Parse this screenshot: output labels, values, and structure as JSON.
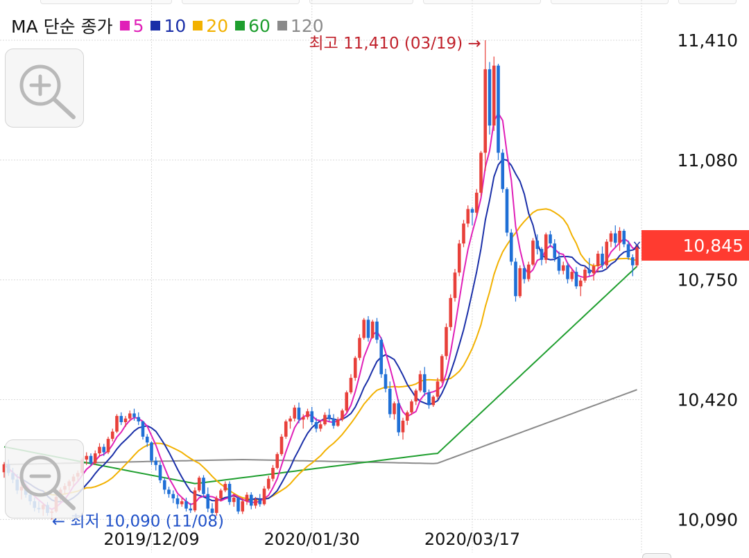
{
  "legend": {
    "title": "MA 단순 종가",
    "items": [
      {
        "label": "5",
        "color": "#e020b8"
      },
      {
        "label": "10",
        "color": "#1a2fa8"
      },
      {
        "label": "20",
        "color": "#f2b100"
      },
      {
        "label": "60",
        "color": "#1e9e2e"
      },
      {
        "label": "120",
        "color": "#8a8a8a"
      }
    ]
  },
  "annotations": {
    "high_label": "최고 11,410 (03/19)",
    "high_arrow": "→",
    "low_label": "최저 10,090 (11/08)",
    "low_arrow": "←"
  },
  "current_price_label": "10,845",
  "colors": {
    "up": "#e8403a",
    "down": "#1f6fd6",
    "price_tag": "#ff3b30"
  },
  "icons": {
    "zoom_in": "zoom-in-icon",
    "zoom_out": "zoom-out-icon"
  },
  "chart_data": {
    "type": "candlestick",
    "title": "",
    "y_ticks": [
      "11,410",
      "11,080",
      "10,750",
      "10,420",
      "10,090"
    ],
    "y_tick_values": [
      11410,
      11080,
      10750,
      10420,
      10090
    ],
    "ylim": [
      10085,
      11410
    ],
    "x_ticks": [
      "2019/12/09",
      "2020/01/30",
      "2020/03/17"
    ],
    "x_tick_index": [
      34,
      71,
      108
    ],
    "grid": true,
    "high": {
      "value": 11410,
      "date": "03/19"
    },
    "low": {
      "value": 10090,
      "date": "11/08"
    },
    "last_close": 10845,
    "candles": [
      [
        10220,
        10248,
        10205,
        10242
      ],
      [
        10242,
        10255,
        10210,
        10218
      ],
      [
        10218,
        10232,
        10190,
        10200
      ],
      [
        10200,
        10215,
        10160,
        10170
      ],
      [
        10170,
        10190,
        10145,
        10180
      ],
      [
        10180,
        10188,
        10150,
        10158
      ],
      [
        10158,
        10172,
        10130,
        10140
      ],
      [
        10140,
        10150,
        10112,
        10122
      ],
      [
        10122,
        10140,
        10108,
        10118
      ],
      [
        10118,
        10135,
        10100,
        10130
      ],
      [
        10130,
        10138,
        10100,
        10108
      ],
      [
        10108,
        10118,
        10090,
        10112
      ],
      [
        10112,
        10160,
        10108,
        10152
      ],
      [
        10152,
        10178,
        10140,
        10172
      ],
      [
        10172,
        10190,
        10160,
        10182
      ],
      [
        10182,
        10200,
        10170,
        10195
      ],
      [
        10195,
        10215,
        10180,
        10208
      ],
      [
        10208,
        10225,
        10195,
        10218
      ],
      [
        10218,
        10260,
        10210,
        10255
      ],
      [
        10255,
        10275,
        10240,
        10265
      ],
      [
        10265,
        10272,
        10238,
        10245
      ],
      [
        10245,
        10280,
        10240,
        10272
      ],
      [
        10272,
        10300,
        10262,
        10290
      ],
      [
        10290,
        10298,
        10265,
        10275
      ],
      [
        10275,
        10318,
        10270,
        10312
      ],
      [
        10312,
        10340,
        10305,
        10332
      ],
      [
        10332,
        10380,
        10328,
        10375
      ],
      [
        10375,
        10385,
        10350,
        10358
      ],
      [
        10358,
        10375,
        10345,
        10368
      ],
      [
        10368,
        10390,
        10360,
        10382
      ],
      [
        10382,
        10395,
        10362,
        10372
      ],
      [
        10372,
        10385,
        10350,
        10360
      ],
      [
        10360,
        10362,
        10310,
        10318
      ],
      [
        10318,
        10325,
        10290,
        10302
      ],
      [
        10302,
        10305,
        10240,
        10252
      ],
      [
        10252,
        10262,
        10225,
        10240
      ],
      [
        10240,
        10248,
        10190,
        10198
      ],
      [
        10198,
        10205,
        10160,
        10172
      ],
      [
        10172,
        10180,
        10150,
        10160
      ],
      [
        10160,
        10170,
        10135,
        10148
      ],
      [
        10148,
        10158,
        10120,
        10132
      ],
      [
        10132,
        10150,
        10125,
        10140
      ],
      [
        10140,
        10150,
        10112,
        10120
      ],
      [
        10120,
        10135,
        10108,
        10115
      ],
      [
        10115,
        10178,
        10110,
        10170
      ],
      [
        10170,
        10210,
        10165,
        10205
      ],
      [
        10205,
        10212,
        10150,
        10160
      ],
      [
        10160,
        10178,
        10110,
        10120
      ],
      [
        10120,
        10135,
        10100,
        10108
      ],
      [
        10108,
        10155,
        10100,
        10148
      ],
      [
        10148,
        10175,
        10140,
        10170
      ],
      [
        10170,
        10195,
        10165,
        10188
      ],
      [
        10188,
        10195,
        10130,
        10138
      ],
      [
        10138,
        10160,
        10125,
        10150
      ],
      [
        10150,
        10152,
        10105,
        10112
      ],
      [
        10112,
        10148,
        10105,
        10140
      ],
      [
        10140,
        10165,
        10130,
        10158
      ],
      [
        10158,
        10165,
        10118,
        10128
      ],
      [
        10128,
        10152,
        10120,
        10145
      ],
      [
        10145,
        10160,
        10125,
        10132
      ],
      [
        10132,
        10182,
        10128,
        10175
      ],
      [
        10175,
        10210,
        10170,
        10202
      ],
      [
        10202,
        10240,
        10195,
        10232
      ],
      [
        10232,
        10275,
        10228,
        10270
      ],
      [
        10270,
        10325,
        10265,
        10318
      ],
      [
        10318,
        10365,
        10312,
        10360
      ],
      [
        10360,
        10375,
        10340,
        10368
      ],
      [
        10368,
        10405,
        10360,
        10398
      ],
      [
        10398,
        10412,
        10355,
        10365
      ],
      [
        10365,
        10380,
        10340,
        10372
      ],
      [
        10372,
        10395,
        10365,
        10388
      ],
      [
        10388,
        10400,
        10350,
        10358
      ],
      [
        10358,
        10370,
        10330,
        10340
      ],
      [
        10340,
        10362,
        10332,
        10352
      ],
      [
        10352,
        10385,
        10348,
        10378
      ],
      [
        10378,
        10395,
        10360,
        10368
      ],
      [
        10368,
        10380,
        10340,
        10348
      ],
      [
        10348,
        10372,
        10345,
        10365
      ],
      [
        10365,
        10395,
        10360,
        10390
      ],
      [
        10390,
        10445,
        10385,
        10440
      ],
      [
        10440,
        10490,
        10435,
        10480
      ],
      [
        10480,
        10540,
        10472,
        10535
      ],
      [
        10535,
        10600,
        10528,
        10590
      ],
      [
        10590,
        10645,
        10585,
        10640
      ],
      [
        10640,
        10650,
        10580,
        10590
      ],
      [
        10590,
        10640,
        10588,
        10635
      ],
      [
        10635,
        10645,
        10575,
        10585
      ],
      [
        10585,
        10592,
        10480,
        10490
      ],
      [
        10490,
        10505,
        10440,
        10450
      ],
      [
        10450,
        10470,
        10370,
        10380
      ],
      [
        10380,
        10415,
        10365,
        10410
      ],
      [
        10410,
        10420,
        10320,
        10330
      ],
      [
        10330,
        10370,
        10310,
        10362
      ],
      [
        10362,
        10390,
        10350,
        10385
      ],
      [
        10385,
        10420,
        10378,
        10415
      ],
      [
        10415,
        10450,
        10405,
        10445
      ],
      [
        10445,
        10500,
        10440,
        10490
      ],
      [
        10490,
        10510,
        10430,
        10440
      ],
      [
        10440,
        10448,
        10395,
        10405
      ],
      [
        10405,
        10432,
        10400,
        10428
      ],
      [
        10428,
        10480,
        10420,
        10470
      ],
      [
        10470,
        10545,
        10465,
        10540
      ],
      [
        10540,
        10630,
        10530,
        10620
      ],
      [
        10620,
        10710,
        10610,
        10700
      ],
      [
        10700,
        10780,
        10690,
        10770
      ],
      [
        10770,
        10860,
        10760,
        10850
      ],
      [
        10850,
        10915,
        10840,
        10905
      ],
      [
        10905,
        10955,
        10895,
        10945
      ],
      [
        10945,
        10950,
        10900,
        10935
      ],
      [
        10935,
        11000,
        10925,
        10990
      ],
      [
        10990,
        11105,
        10980,
        11100
      ],
      [
        11100,
        11410,
        11050,
        11330
      ],
      [
        11330,
        11350,
        11150,
        11175
      ],
      [
        11175,
        11365,
        11160,
        11340
      ],
      [
        11340,
        11345,
        11080,
        11100
      ],
      [
        11100,
        11110,
        10990,
        11000
      ],
      [
        11000,
        11005,
        10870,
        10880
      ],
      [
        10880,
        10890,
        10790,
        10800
      ],
      [
        10800,
        10810,
        10690,
        10705
      ],
      [
        10705,
        10790,
        10700,
        10782
      ],
      [
        10782,
        10790,
        10740,
        10752
      ],
      [
        10752,
        10800,
        10745,
        10792
      ],
      [
        10792,
        10865,
        10788,
        10858
      ],
      [
        10858,
        10875,
        10820,
        10835
      ],
      [
        10835,
        10840,
        10790,
        10805
      ],
      [
        10805,
        10880,
        10795,
        10875
      ],
      [
        10875,
        10885,
        10840,
        10850
      ],
      [
        10850,
        10862,
        10800,
        10810
      ],
      [
        10810,
        10828,
        10765,
        10775
      ],
      [
        10775,
        10800,
        10765,
        10790
      ],
      [
        10790,
        10798,
        10740,
        10752
      ],
      [
        10752,
        10780,
        10745,
        10772
      ],
      [
        10772,
        10785,
        10725,
        10732
      ],
      [
        10732,
        10755,
        10705,
        10748
      ],
      [
        10748,
        10785,
        10742,
        10778
      ],
      [
        10778,
        10810,
        10760,
        10768
      ],
      [
        10768,
        10795,
        10748,
        10788
      ],
      [
        10788,
        10830,
        10770,
        10822
      ],
      [
        10822,
        10842,
        10780,
        10790
      ],
      [
        10790,
        10862,
        10780,
        10855
      ],
      [
        10855,
        10885,
        10840,
        10878
      ],
      [
        10878,
        10900,
        10840,
        10852
      ],
      [
        10852,
        10895,
        10830,
        10885
      ],
      [
        10885,
        10890,
        10840,
        10848
      ],
      [
        10848,
        10858,
        10805,
        10812
      ],
      [
        10812,
        10820,
        10760,
        10790
      ],
      [
        10790,
        10845,
        10785,
        10845
      ]
    ]
  }
}
